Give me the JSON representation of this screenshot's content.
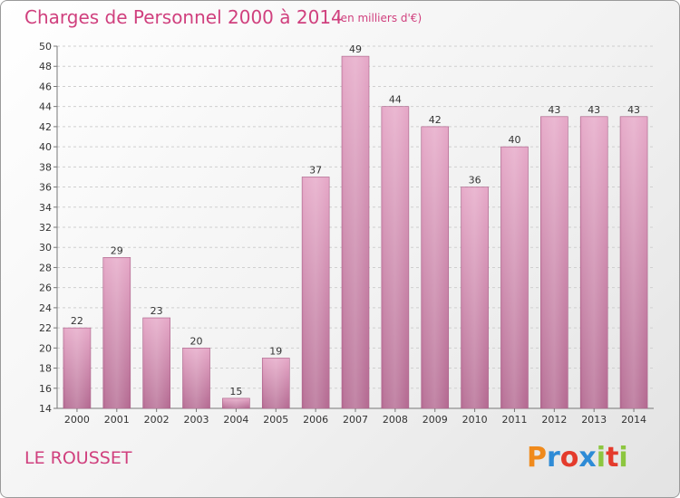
{
  "chart_data": {
    "type": "bar",
    "title": "Charges de Personnel 2000 à 2014",
    "subtitle": "(en milliers d'€)",
    "categories": [
      "2000",
      "2001",
      "2002",
      "2003",
      "2004",
      "2005",
      "2006",
      "2007",
      "2008",
      "2009",
      "2010",
      "2011",
      "2012",
      "2013",
      "2014"
    ],
    "values": [
      22,
      29,
      23,
      20,
      15,
      19,
      37,
      49,
      44,
      42,
      36,
      40,
      43,
      43,
      43
    ],
    "ylim": [
      14,
      50
    ],
    "yticks": [
      14,
      16,
      18,
      20,
      22,
      24,
      26,
      28,
      30,
      32,
      34,
      36,
      38,
      40,
      42,
      44,
      46,
      48,
      50
    ],
    "xlabel": "",
    "ylabel": "",
    "grid": true,
    "bar_color": "#d88ab0"
  },
  "footer": {
    "place": "LE ROUSSET",
    "logo_text": "Proxiti"
  }
}
